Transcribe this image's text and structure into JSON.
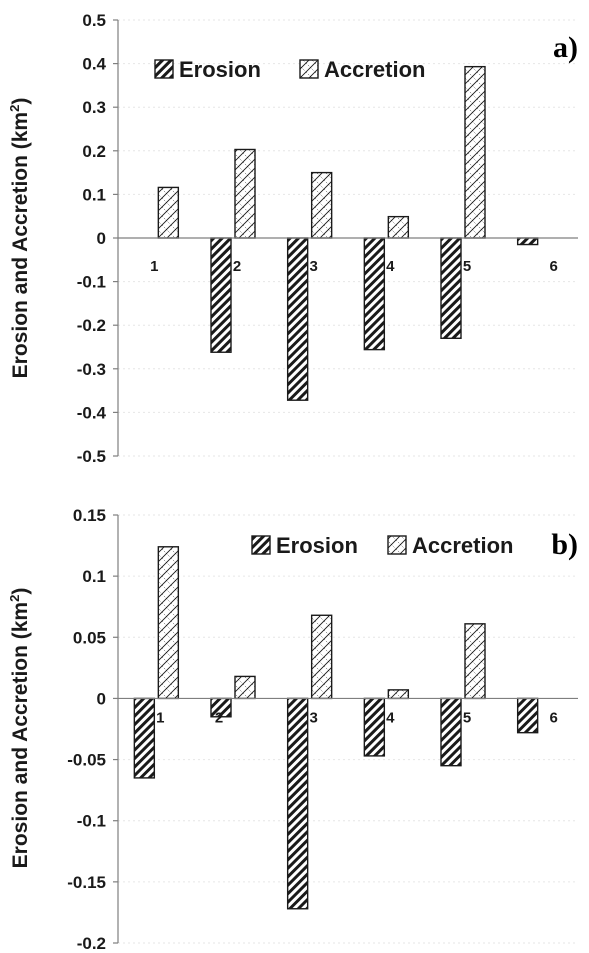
{
  "chart_data": [
    {
      "type": "bar",
      "panel_label": "a)",
      "categories": [
        "1",
        "2",
        "3",
        "4",
        "5",
        "6"
      ],
      "series": [
        {
          "name": "Erosion",
          "values": [
            0,
            -0.262,
            -0.372,
            -0.256,
            -0.23,
            -0.015
          ]
        },
        {
          "name": "Accretion",
          "values": [
            0.116,
            0.203,
            0.15,
            0.049,
            0.393,
            0
          ]
        }
      ],
      "ylabel": "Erosion and Accretion (km",
      "ylabel_sup": "2",
      "ylabel_close": ")",
      "ylim": [
        -0.5,
        0.5
      ],
      "yticks": [
        "0.5",
        "0.4",
        "0.3",
        "0.2",
        "0.1",
        "0",
        "-0.1",
        "-0.2",
        "-0.3",
        "-0.4",
        "-0.5"
      ],
      "ytick_values": [
        0.5,
        0.4,
        0.3,
        0.2,
        0.1,
        0,
        -0.1,
        -0.2,
        -0.3,
        -0.4,
        -0.5
      ],
      "grid": true,
      "legend_position": "top"
    },
    {
      "type": "bar",
      "panel_label": "b)",
      "categories": [
        "1",
        "2",
        "3",
        "4",
        "5",
        "6"
      ],
      "series": [
        {
          "name": "Erosion",
          "values": [
            -0.065,
            -0.015,
            -0.172,
            -0.047,
            -0.055,
            -0.028
          ]
        },
        {
          "name": "Accretion",
          "values": [
            0.124,
            0.018,
            0.068,
            0.007,
            0.061,
            0
          ]
        }
      ],
      "ylabel": "Erosion and Accretion (km",
      "ylabel_sup": "2",
      "ylabel_close": ")",
      "ylim": [
        -0.2,
        0.15
      ],
      "yticks": [
        "0.15",
        "0.1",
        "0.05",
        "0",
        "-0.05",
        "-0.1",
        "-0.15",
        "-0.2"
      ],
      "ytick_values": [
        0.15,
        0.1,
        0.05,
        0,
        -0.05,
        -0.1,
        -0.15,
        -0.2
      ],
      "grid": true,
      "legend_position": "top"
    }
  ],
  "colors": {
    "bar_stroke": "#1a1a1a",
    "axis": "#7f7f7f",
    "grid": "#e6e6e6",
    "background": "#ffffff"
  }
}
